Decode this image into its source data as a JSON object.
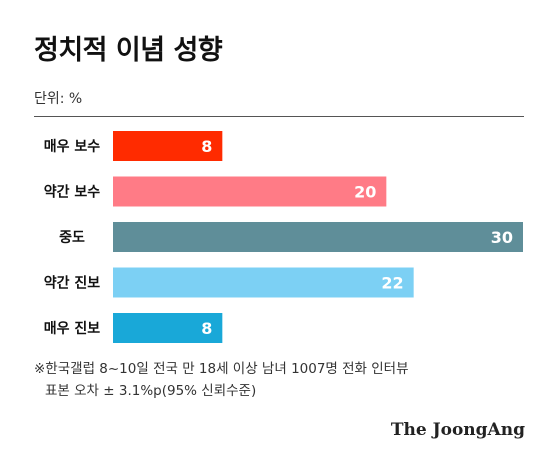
{
  "title": "정치적 이념 성향",
  "unit_label": "단위: %",
  "footnote": {
    "line1": "※한국갤럽 8~10일 전국 만 18세 이상 남녀 1007명 전화 인터뷰",
    "line2": "표본 오차 ± 3.1%p(95% 신뢰수준)"
  },
  "brand": "The JoongAng",
  "chart_data": {
    "type": "bar",
    "orientation": "horizontal",
    "categories": [
      "매우 보수",
      "약간 보수",
      "중도",
      "약간 진보",
      "매우 진보"
    ],
    "values": [
      8,
      20,
      30,
      22,
      8
    ],
    "colors": [
      "#ff2b00",
      "#ff7b86",
      "#5f8e99",
      "#7cd0f4",
      "#19a8d8"
    ],
    "xlim": [
      0,
      30
    ],
    "title": "정치적 이념 성향",
    "unit": "%",
    "grid": false,
    "legend": "none"
  }
}
